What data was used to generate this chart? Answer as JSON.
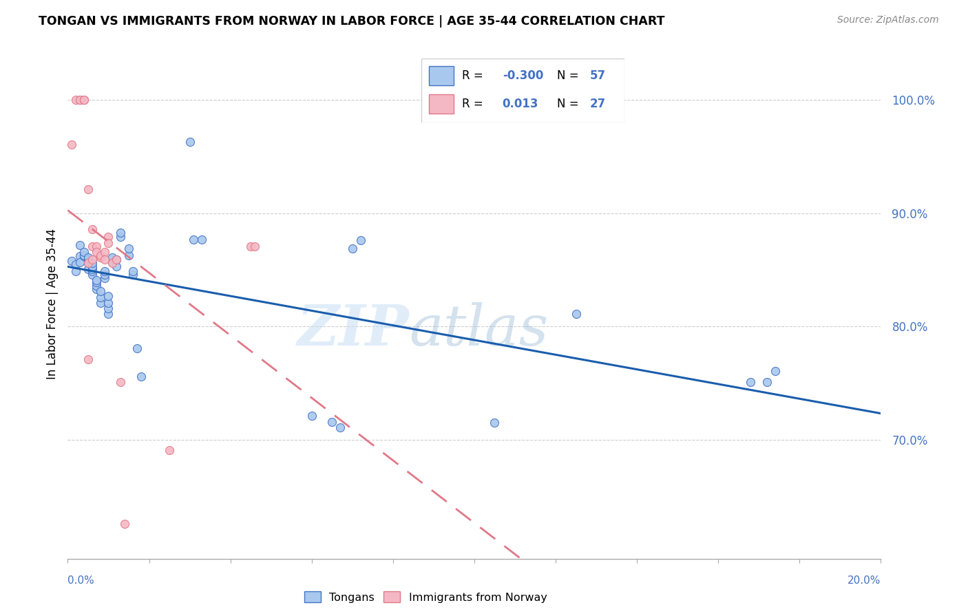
{
  "title": "TONGAN VS IMMIGRANTS FROM NORWAY IN LABOR FORCE | AGE 35-44 CORRELATION CHART",
  "source": "Source: ZipAtlas.com",
  "ylabel": "In Labor Force | Age 35-44",
  "y_tick_labels": [
    "70.0%",
    "80.0%",
    "90.0%",
    "100.0%"
  ],
  "y_tick_values": [
    0.7,
    0.8,
    0.9,
    1.0
  ],
  "x_range": [
    0.0,
    0.2
  ],
  "y_range": [
    0.595,
    1.045
  ],
  "legend_blue_R": "-0.300",
  "legend_blue_N": "57",
  "legend_pink_R": "0.013",
  "legend_pink_N": "27",
  "blue_scatter_color": "#A8C8EE",
  "blue_edge_color": "#4472C4",
  "pink_scatter_color": "#F4B8C4",
  "pink_edge_color": "#E07888",
  "blue_line_color": "#1A5DAD",
  "pink_line_color": "#E07888",
  "tongans_x": [
    0.001,
    0.002,
    0.002,
    0.003,
    0.003,
    0.003,
    0.004,
    0.004,
    0.004,
    0.005,
    0.005,
    0.005,
    0.005,
    0.006,
    0.006,
    0.006,
    0.006,
    0.006,
    0.007,
    0.007,
    0.007,
    0.007,
    0.008,
    0.008,
    0.008,
    0.009,
    0.009,
    0.009,
    0.01,
    0.01,
    0.01,
    0.01,
    0.011,
    0.011,
    0.012,
    0.012,
    0.013,
    0.013,
    0.015,
    0.015,
    0.016,
    0.016,
    0.017,
    0.018,
    0.03,
    0.031,
    0.033,
    0.06,
    0.065,
    0.067,
    0.07,
    0.072,
    0.105,
    0.125,
    0.168,
    0.172,
    0.174
  ],
  "tongans_y": [
    0.858,
    0.855,
    0.849,
    0.872,
    0.862,
    0.857,
    0.862,
    0.863,
    0.866,
    0.851,
    0.856,
    0.859,
    0.861,
    0.846,
    0.849,
    0.851,
    0.853,
    0.856,
    0.833,
    0.836,
    0.839,
    0.841,
    0.821,
    0.826,
    0.831,
    0.843,
    0.846,
    0.849,
    0.811,
    0.816,
    0.821,
    0.827,
    0.857,
    0.861,
    0.853,
    0.859,
    0.879,
    0.883,
    0.863,
    0.869,
    0.846,
    0.849,
    0.781,
    0.756,
    0.963,
    0.877,
    0.877,
    0.721,
    0.716,
    0.711,
    0.869,
    0.876,
    0.715,
    0.811,
    0.751,
    0.751,
    0.761
  ],
  "norway_x": [
    0.001,
    0.002,
    0.003,
    0.003,
    0.004,
    0.004,
    0.005,
    0.005,
    0.005,
    0.006,
    0.006,
    0.006,
    0.007,
    0.007,
    0.008,
    0.008,
    0.009,
    0.009,
    0.01,
    0.01,
    0.011,
    0.012,
    0.013,
    0.014,
    0.025,
    0.045,
    0.046
  ],
  "norway_y": [
    0.961,
    1.0,
    1.0,
    1.0,
    1.0,
    1.0,
    0.921,
    0.856,
    0.771,
    0.886,
    0.871,
    0.859,
    0.871,
    0.866,
    0.861,
    0.863,
    0.866,
    0.859,
    0.879,
    0.874,
    0.856,
    0.859,
    0.751,
    0.626,
    0.691,
    0.871,
    0.871
  ]
}
